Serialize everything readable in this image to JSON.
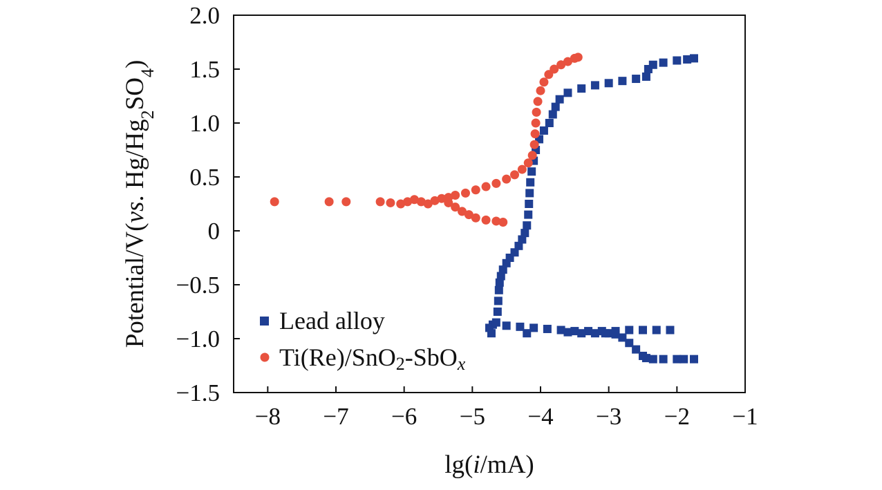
{
  "chart_data": {
    "type": "scatter",
    "title": "",
    "xlabel": "lg(i/mA)",
    "xlabel_parts": {
      "prefix": "lg(",
      "italic": "i",
      "suffix": "/mA)"
    },
    "ylabel": "Potential/V(vs. Hg/Hg2SO4)",
    "ylabel_parts": {
      "prefix": "Potential/V(",
      "italic": "vs",
      "middle": ". Hg/Hg",
      "sub1": "2",
      "mid2": "SO",
      "sub2": "4",
      "suffix": ")"
    },
    "xlim": [
      -8.5,
      -1
    ],
    "ylim": [
      -1.5,
      2.0
    ],
    "x_ticks": [
      -8,
      -7,
      -6,
      -5,
      -4,
      -3,
      -2,
      -1
    ],
    "x_tick_labels": [
      "−8",
      "−7",
      "−6",
      "−5",
      "−4",
      "−3",
      "−2",
      "−1"
    ],
    "y_ticks": [
      -1.5,
      -1.0,
      -0.5,
      0,
      0.5,
      1.0,
      1.5,
      2.0
    ],
    "y_tick_labels": [
      "−1.5",
      "−1.0",
      "−0.5",
      "0",
      "0.5",
      "1.0",
      "1.5",
      "2.0"
    ],
    "grid": false,
    "legend_position": "bottom-left",
    "series": [
      {
        "name": "Lead alloy",
        "label_parts": {
          "text": "Lead alloy"
        },
        "marker": "square",
        "color": "#1f3f93",
        "points": [
          [
            -2.1,
            -0.92
          ],
          [
            -2.3,
            -0.92
          ],
          [
            -2.5,
            -0.92
          ],
          [
            -2.7,
            -0.92
          ],
          [
            -2.9,
            -0.93
          ],
          [
            -3.1,
            -0.93
          ],
          [
            -3.3,
            -0.93
          ],
          [
            -3.5,
            -0.93
          ],
          [
            -3.7,
            -0.92
          ],
          [
            -3.9,
            -0.91
          ],
          [
            -4.1,
            -0.9
          ],
          [
            -4.3,
            -0.89
          ],
          [
            -4.5,
            -0.88
          ],
          [
            -4.7,
            -0.87
          ],
          [
            -3.0,
            -0.95
          ],
          [
            -3.2,
            -0.95
          ],
          [
            -3.4,
            -0.95
          ],
          [
            -3.6,
            -0.94
          ],
          [
            -4.2,
            -0.95
          ],
          [
            -4.72,
            -0.95
          ],
          [
            -4.75,
            -0.9
          ],
          [
            -1.75,
            -1.19
          ],
          [
            -1.9,
            -1.19
          ],
          [
            -2.0,
            -1.19
          ],
          [
            -2.2,
            -1.19
          ],
          [
            -2.35,
            -1.19
          ],
          [
            -2.45,
            -1.18
          ],
          [
            -2.5,
            -1.16
          ],
          [
            -2.6,
            -1.1
          ],
          [
            -2.7,
            -1.04
          ],
          [
            -2.8,
            -0.99
          ],
          [
            -2.9,
            -0.96
          ],
          [
            -3.05,
            -0.95
          ],
          [
            -4.65,
            -0.85
          ],
          [
            -4.63,
            -0.75
          ],
          [
            -4.62,
            -0.65
          ],
          [
            -4.61,
            -0.55
          ],
          [
            -4.6,
            -0.48
          ],
          [
            -4.58,
            -0.42
          ],
          [
            -4.55,
            -0.36
          ],
          [
            -4.5,
            -0.3
          ],
          [
            -4.45,
            -0.25
          ],
          [
            -4.38,
            -0.2
          ],
          [
            -4.32,
            -0.14
          ],
          [
            -4.27,
            -0.08
          ],
          [
            -4.23,
            -0.02
          ],
          [
            -4.2,
            0.05
          ],
          [
            -4.18,
            0.15
          ],
          [
            -4.17,
            0.25
          ],
          [
            -4.16,
            0.35
          ],
          [
            -4.15,
            0.45
          ],
          [
            -4.13,
            0.55
          ],
          [
            -4.1,
            0.65
          ],
          [
            -4.07,
            0.75
          ],
          [
            -4.02,
            0.85
          ],
          [
            -3.95,
            0.93
          ],
          [
            -3.87,
            1.0
          ],
          [
            -3.82,
            1.08
          ],
          [
            -3.78,
            1.15
          ],
          [
            -3.72,
            1.22
          ],
          [
            -3.6,
            1.28
          ],
          [
            -3.4,
            1.32
          ],
          [
            -3.2,
            1.35
          ],
          [
            -3.0,
            1.37
          ],
          [
            -2.8,
            1.39
          ],
          [
            -2.6,
            1.41
          ],
          [
            -2.45,
            1.43
          ],
          [
            -2.42,
            1.5
          ],
          [
            -2.35,
            1.54
          ],
          [
            -2.2,
            1.56
          ],
          [
            -2.0,
            1.58
          ],
          [
            -1.85,
            1.59
          ],
          [
            -1.75,
            1.6
          ]
        ]
      },
      {
        "name": "Ti(Re)/SnO2-SbOx",
        "label_parts": {
          "prefix": "Ti(Re)/SnO",
          "sub": "2",
          "middle": "-SbO",
          "sub_italic": "x"
        },
        "marker": "circle",
        "color": "#e8523f",
        "points": [
          [
            -7.9,
            0.27
          ],
          [
            -7.1,
            0.27
          ],
          [
            -6.85,
            0.27
          ],
          [
            -6.35,
            0.27
          ],
          [
            -6.2,
            0.26
          ],
          [
            -6.05,
            0.25
          ],
          [
            -5.95,
            0.27
          ],
          [
            -5.85,
            0.29
          ],
          [
            -5.75,
            0.27
          ],
          [
            -5.65,
            0.25
          ],
          [
            -5.55,
            0.28
          ],
          [
            -5.45,
            0.3
          ],
          [
            -5.35,
            0.31
          ],
          [
            -5.25,
            0.33
          ],
          [
            -5.1,
            0.35
          ],
          [
            -4.95,
            0.38
          ],
          [
            -4.8,
            0.41
          ],
          [
            -4.65,
            0.44
          ],
          [
            -4.5,
            0.48
          ],
          [
            -4.38,
            0.52
          ],
          [
            -4.27,
            0.57
          ],
          [
            -4.18,
            0.63
          ],
          [
            -4.12,
            0.7
          ],
          [
            -4.09,
            0.8
          ],
          [
            -4.08,
            0.9
          ],
          [
            -4.07,
            1.0
          ],
          [
            -4.06,
            1.1
          ],
          [
            -4.04,
            1.2
          ],
          [
            -4.0,
            1.3
          ],
          [
            -3.95,
            1.38
          ],
          [
            -3.88,
            1.45
          ],
          [
            -3.8,
            1.5
          ],
          [
            -3.7,
            1.54
          ],
          [
            -3.6,
            1.57
          ],
          [
            -3.5,
            1.6
          ],
          [
            -3.45,
            1.61
          ],
          [
            -5.35,
            0.26
          ],
          [
            -5.25,
            0.22
          ],
          [
            -5.15,
            0.18
          ],
          [
            -5.05,
            0.15
          ],
          [
            -4.95,
            0.12
          ],
          [
            -4.8,
            0.1
          ],
          [
            -4.65,
            0.09
          ],
          [
            -4.55,
            0.08
          ]
        ]
      }
    ]
  }
}
